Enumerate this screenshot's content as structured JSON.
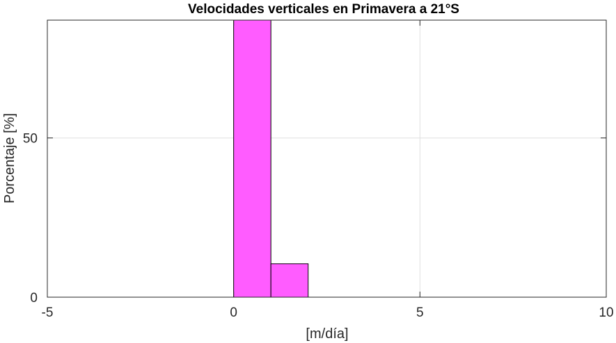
{
  "chart_data": {
    "type": "bar",
    "subtype": "histogram",
    "title": "Velocidades verticales en Primavera a 21°S",
    "xlabel": "[m/día]",
    "ylabel": "Porcentaje [%]",
    "xlim": [
      -5,
      10
    ],
    "ylim": [
      0,
      87
    ],
    "xticks": [
      -5,
      0,
      5,
      10
    ],
    "xtick_labels": [
      "-5",
      "0",
      "5",
      "10"
    ],
    "yticks": [
      0,
      50
    ],
    "ytick_labels": [
      "0",
      "50"
    ],
    "grid": true,
    "bar_color": "#ff5cff",
    "bar_edge_color": "#000000",
    "bins": [
      {
        "x0": 0,
        "x1": 1,
        "value": 88
      },
      {
        "x0": 1,
        "x1": 2,
        "value": 10.5
      }
    ]
  }
}
